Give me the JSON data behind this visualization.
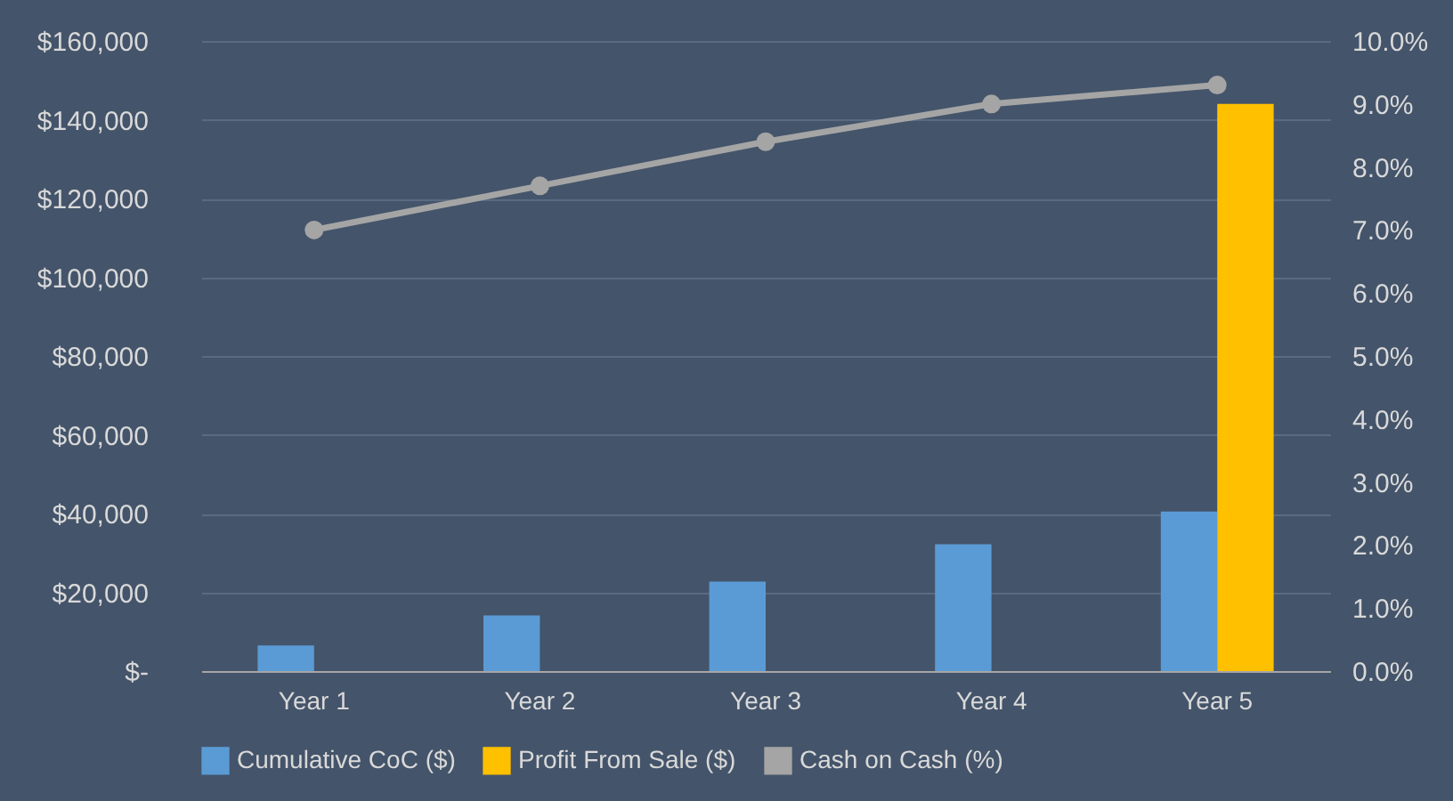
{
  "chart_data": {
    "type": "bar",
    "categories": [
      "Year 1",
      "Year 2",
      "Year 3",
      "Year 4",
      "Year 5"
    ],
    "series": [
      {
        "name": "Cumulative CoC ($)",
        "color": "#5b9bd5",
        "values": [
          6500,
          14100,
          22700,
          32200,
          40500
        ]
      },
      {
        "name": "Profit From Sale ($)",
        "color": "#ffc000",
        "values": [
          null,
          null,
          null,
          null,
          144000
        ]
      },
      {
        "name": "Cash on Cash (%)",
        "type": "line",
        "axis": "y2",
        "color": "#a5a5a5",
        "values": [
          7.0,
          7.7,
          8.4,
          9.0,
          9.3
        ]
      }
    ],
    "ylim": [
      0,
      160000
    ],
    "yticks": [
      {
        "value": 0,
        "label": "$-"
      },
      {
        "value": 20000,
        "label": "$20,000"
      },
      {
        "value": 40000,
        "label": "$40,000"
      },
      {
        "value": 60000,
        "label": "$60,000"
      },
      {
        "value": 80000,
        "label": "$80,000"
      },
      {
        "value": 100000,
        "label": "$100,000"
      },
      {
        "value": 120000,
        "label": "$120,000"
      },
      {
        "value": 140000,
        "label": "$140,000"
      },
      {
        "value": 160000,
        "label": "$160,000"
      }
    ],
    "y2lim": [
      0,
      10
    ],
    "y2ticks": [
      {
        "value": 0,
        "label": "0.0%"
      },
      {
        "value": 1,
        "label": "1.0%"
      },
      {
        "value": 2,
        "label": "2.0%"
      },
      {
        "value": 3,
        "label": "3.0%"
      },
      {
        "value": 4,
        "label": "4.0%"
      },
      {
        "value": 5,
        "label": "5.0%"
      },
      {
        "value": 6,
        "label": "6.0%"
      },
      {
        "value": 7,
        "label": "7.0%"
      },
      {
        "value": 8,
        "label": "8.0%"
      },
      {
        "value": 9,
        "label": "9.0%"
      },
      {
        "value": 10,
        "label": "10.0%"
      }
    ],
    "grid": "y",
    "legend": "bottom",
    "marker": "circle",
    "line_style": "solid"
  }
}
